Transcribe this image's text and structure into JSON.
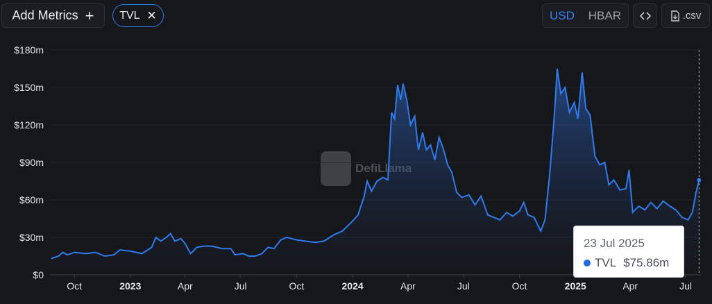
{
  "toolbar": {
    "add_metrics_label": "Add Metrics",
    "add_icon": "plus-icon",
    "metric_pill": "TVL",
    "remove_icon": "close-icon",
    "currency_options": [
      "USD",
      "HBAR"
    ],
    "selected_currency": "USD",
    "embed_icon": "code-icon",
    "csv_label": ".csv",
    "csv_icon": "file-download-icon"
  },
  "watermark": {
    "text": "DefiLlama"
  },
  "tooltip": {
    "date": "23 Jul 2025",
    "series": "TVL",
    "value": "$75.86m"
  },
  "colors": {
    "accent": "#3b82f6",
    "line": "#2f7bef",
    "background": "#16171b"
  },
  "chart_data": {
    "type": "area",
    "title": "",
    "xlabel": "",
    "ylabel": "",
    "yticks": [
      "$0",
      "$30m",
      "$60m",
      "$90m",
      "$120m",
      "$150m",
      "$180m"
    ],
    "ylim": [
      0,
      180
    ],
    "xticks": [
      {
        "label": "Oct",
        "date": "2022-10-01",
        "bold": false
      },
      {
        "label": "2023",
        "date": "2023-01-01",
        "bold": true
      },
      {
        "label": "Apr",
        "date": "2023-04-01",
        "bold": false
      },
      {
        "label": "Jul",
        "date": "2023-07-01",
        "bold": false
      },
      {
        "label": "Oct",
        "date": "2023-10-01",
        "bold": false
      },
      {
        "label": "2024",
        "date": "2024-01-01",
        "bold": true
      },
      {
        "label": "Apr",
        "date": "2024-04-01",
        "bold": false
      },
      {
        "label": "Jul",
        "date": "2024-07-01",
        "bold": false
      },
      {
        "label": "Oct",
        "date": "2024-10-01",
        "bold": false
      },
      {
        "label": "2025",
        "date": "2025-01-01",
        "bold": true
      },
      {
        "label": "Apr",
        "date": "2025-04-01",
        "bold": false
      },
      {
        "label": "Jul",
        "date": "2025-07-01",
        "bold": false
      }
    ],
    "xlim": [
      "2022-08-22",
      "2025-07-26"
    ],
    "grid": true,
    "series": [
      {
        "name": "TVL",
        "points": [
          [
            "2022-08-24",
            13
          ],
          [
            "2022-09-05",
            15
          ],
          [
            "2022-09-12",
            18
          ],
          [
            "2022-09-20",
            16
          ],
          [
            "2022-10-01",
            18
          ],
          [
            "2022-10-20",
            17
          ],
          [
            "2022-11-05",
            18
          ],
          [
            "2022-11-20",
            15
          ],
          [
            "2022-12-05",
            16
          ],
          [
            "2022-12-15",
            20
          ],
          [
            "2023-01-01",
            19
          ],
          [
            "2023-01-20",
            17
          ],
          [
            "2023-02-05",
            22
          ],
          [
            "2023-02-12",
            30
          ],
          [
            "2023-02-20",
            27
          ],
          [
            "2023-03-01",
            30
          ],
          [
            "2023-03-08",
            33
          ],
          [
            "2023-03-15",
            27
          ],
          [
            "2023-03-25",
            29
          ],
          [
            "2023-04-01",
            25
          ],
          [
            "2023-04-10",
            17
          ],
          [
            "2023-04-20",
            22
          ],
          [
            "2023-05-01",
            23
          ],
          [
            "2023-05-15",
            23
          ],
          [
            "2023-06-01",
            21
          ],
          [
            "2023-06-15",
            21
          ],
          [
            "2023-06-22",
            16
          ],
          [
            "2023-07-05",
            17
          ],
          [
            "2023-07-15",
            15
          ],
          [
            "2023-07-25",
            15
          ],
          [
            "2023-08-05",
            17
          ],
          [
            "2023-08-15",
            22
          ],
          [
            "2023-08-25",
            21
          ],
          [
            "2023-09-05",
            28
          ],
          [
            "2023-09-15",
            30
          ],
          [
            "2023-10-01",
            28
          ],
          [
            "2023-10-15",
            27
          ],
          [
            "2023-11-01",
            26
          ],
          [
            "2023-11-15",
            27
          ],
          [
            "2023-12-01",
            32
          ],
          [
            "2023-12-15",
            35
          ],
          [
            "2024-01-01",
            43
          ],
          [
            "2024-01-10",
            48
          ],
          [
            "2024-01-20",
            63
          ],
          [
            "2024-01-25",
            75
          ],
          [
            "2024-02-01",
            67
          ],
          [
            "2024-02-10",
            75
          ],
          [
            "2024-02-20",
            78
          ],
          [
            "2024-02-28",
            76
          ],
          [
            "2024-03-05",
            130
          ],
          [
            "2024-03-10",
            125
          ],
          [
            "2024-03-15",
            152
          ],
          [
            "2024-03-20",
            140
          ],
          [
            "2024-03-24",
            153
          ],
          [
            "2024-03-30",
            140
          ],
          [
            "2024-04-05",
            120
          ],
          [
            "2024-04-12",
            127
          ],
          [
            "2024-04-18",
            100
          ],
          [
            "2024-04-25",
            114
          ],
          [
            "2024-05-01",
            100
          ],
          [
            "2024-05-08",
            104
          ],
          [
            "2024-05-15",
            92
          ],
          [
            "2024-05-22",
            110
          ],
          [
            "2024-05-29",
            101
          ],
          [
            "2024-06-05",
            88
          ],
          [
            "2024-06-12",
            82
          ],
          [
            "2024-06-20",
            66
          ],
          [
            "2024-06-28",
            62
          ],
          [
            "2024-07-10",
            64
          ],
          [
            "2024-07-20",
            56
          ],
          [
            "2024-07-30",
            63
          ],
          [
            "2024-08-10",
            48
          ],
          [
            "2024-08-20",
            46
          ],
          [
            "2024-08-30",
            44
          ],
          [
            "2024-09-10",
            50
          ],
          [
            "2024-09-20",
            47
          ],
          [
            "2024-10-01",
            51
          ],
          [
            "2024-10-08",
            58
          ],
          [
            "2024-10-15",
            48
          ],
          [
            "2024-10-25",
            46
          ],
          [
            "2024-11-05",
            35
          ],
          [
            "2024-11-12",
            44
          ],
          [
            "2024-11-20",
            82
          ],
          [
            "2024-11-28",
            132
          ],
          [
            "2024-12-02",
            165
          ],
          [
            "2024-12-08",
            145
          ],
          [
            "2024-12-15",
            150
          ],
          [
            "2024-12-22",
            130
          ],
          [
            "2024-12-30",
            138
          ],
          [
            "2025-01-05",
            125
          ],
          [
            "2025-01-12",
            162
          ],
          [
            "2025-01-18",
            133
          ],
          [
            "2025-01-25",
            128
          ],
          [
            "2025-02-02",
            95
          ],
          [
            "2025-02-10",
            88
          ],
          [
            "2025-02-18",
            90
          ],
          [
            "2025-02-25",
            72
          ],
          [
            "2025-03-05",
            76
          ],
          [
            "2025-03-15",
            68
          ],
          [
            "2025-03-25",
            69
          ],
          [
            "2025-03-30",
            84
          ],
          [
            "2025-04-05",
            50
          ],
          [
            "2025-04-15",
            55
          ],
          [
            "2025-04-25",
            52
          ],
          [
            "2025-05-05",
            58
          ],
          [
            "2025-05-15",
            53
          ],
          [
            "2025-05-25",
            59
          ],
          [
            "2025-06-05",
            55
          ],
          [
            "2025-06-15",
            52
          ],
          [
            "2025-06-25",
            46
          ],
          [
            "2025-07-05",
            44
          ],
          [
            "2025-07-12",
            50
          ],
          [
            "2025-07-18",
            66
          ],
          [
            "2025-07-23",
            75.86
          ]
        ]
      }
    ],
    "highlighted_point": {
      "date": "2025-07-23",
      "value": 75.86
    }
  }
}
